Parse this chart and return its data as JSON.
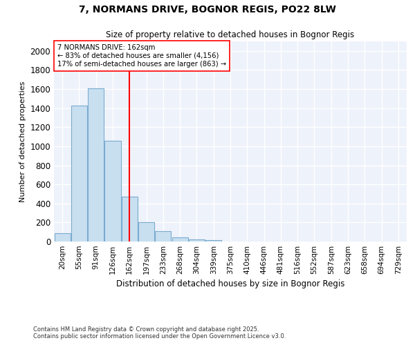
{
  "title_line1": "7, NORMANS DRIVE, BOGNOR REGIS, PO22 8LW",
  "title_line2": "Size of property relative to detached houses in Bognor Regis",
  "xlabel": "Distribution of detached houses by size in Bognor Regis",
  "ylabel": "Number of detached properties",
  "categories": [
    "20sqm",
    "55sqm",
    "91sqm",
    "126sqm",
    "162sqm",
    "197sqm",
    "233sqm",
    "268sqm",
    "304sqm",
    "339sqm",
    "375sqm",
    "410sqm",
    "446sqm",
    "481sqm",
    "516sqm",
    "552sqm",
    "587sqm",
    "623sqm",
    "658sqm",
    "694sqm",
    "729sqm"
  ],
  "values": [
    85,
    1430,
    1610,
    1055,
    470,
    205,
    110,
    40,
    25,
    15,
    0,
    0,
    0,
    0,
    0,
    0,
    0,
    0,
    0,
    0,
    0
  ],
  "bar_color": "#c8dff0",
  "bar_edge_color": "#7aabcf",
  "redline_index": 4,
  "redline_label": "7 NORMANS DRIVE: 162sqm",
  "annotation_line1": "← 83% of detached houses are smaller (4,156)",
  "annotation_line2": "17% of semi-detached houses are larger (863) →",
  "ylim": [
    0,
    2100
  ],
  "yticks": [
    0,
    200,
    400,
    600,
    800,
    1000,
    1200,
    1400,
    1600,
    1800,
    2000
  ],
  "bg_color": "#eef2fb",
  "grid_color": "#ffffff",
  "footer_line1": "Contains HM Land Registry data © Crown copyright and database right 2025.",
  "footer_line2": "Contains public sector information licensed under the Open Government Licence v3.0."
}
